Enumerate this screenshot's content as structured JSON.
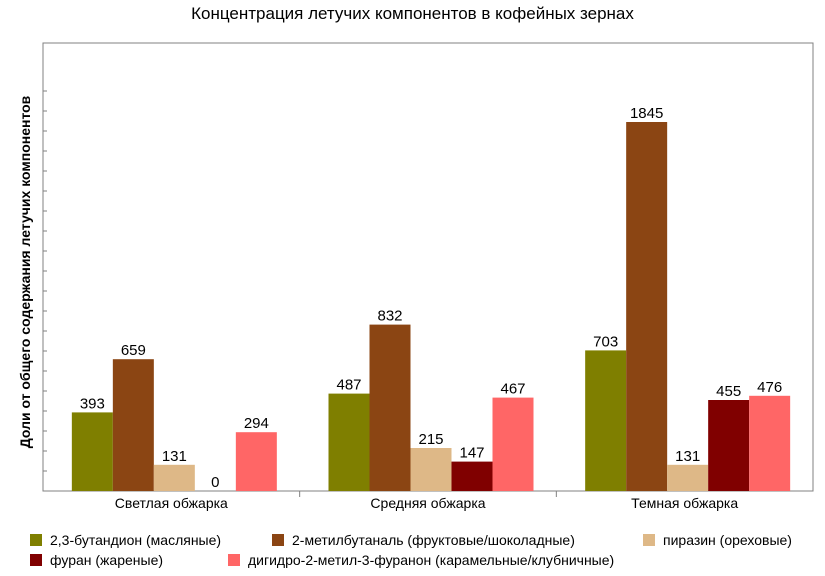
{
  "chart_data": {
    "type": "bar",
    "title": "Концентрация летучих компонентов в кофейных зернах",
    "ylabel": "Доли от общего содержания летучих компонентов",
    "xlabel": "",
    "categories": [
      "Светлая обжарка",
      "Средняя обжарка",
      "Темная обжарка"
    ],
    "ylim": [
      0,
      2000
    ],
    "grid": false,
    "legend_position": "bottom",
    "series": [
      {
        "name": "2,3-бутандион (масляные)",
        "color": "#7f7f00",
        "values": [
          393,
          487,
          703
        ]
      },
      {
        "name": "2-метилбутаналь (фруктовые/шоколадные)",
        "color": "#8b4513",
        "values": [
          659,
          832,
          1845
        ]
      },
      {
        "name": "пиразин (ореховые)",
        "color": "#deb887",
        "values": [
          131,
          215,
          131
        ]
      },
      {
        "name": "фуран (жареные)",
        "color": "#800000",
        "values": [
          0,
          147,
          455
        ]
      },
      {
        "name": "дигидро-2-метил-3-фуранон (карамельные/клубничные)",
        "color": "#ff6666",
        "values": [
          294,
          467,
          476
        ]
      }
    ]
  }
}
